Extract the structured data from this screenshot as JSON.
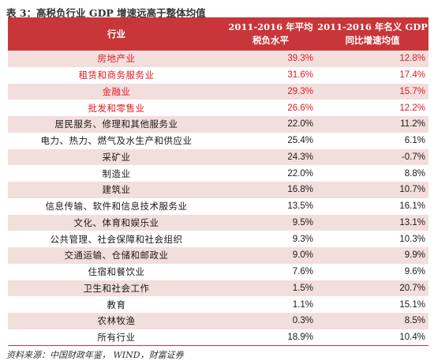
{
  "title": "表 3：高税负行业 GDP 增速远高于整体均值",
  "headers": {
    "industry": "行业",
    "col2_line1": "2011-2016 年平均",
    "col2_line2": "税负水平",
    "col3_line1": "2011-2016 年名义 GDP",
    "col3_line2": "同比增速均值"
  },
  "highlight_color": "#e0191f",
  "header_color": "#c8363a",
  "rows": [
    {
      "industry": "房地产业",
      "tax": "39.3%",
      "gdp": "12.8%",
      "highlight": true
    },
    {
      "industry": "租赁和商务服务业",
      "tax": "31.6%",
      "gdp": "17.4%",
      "highlight": true
    },
    {
      "industry": "金融业",
      "tax": "29.3%",
      "gdp": "15.7%",
      "highlight": true
    },
    {
      "industry": "批发和零售业",
      "tax": "26.6%",
      "gdp": "12.2%",
      "highlight": true
    },
    {
      "industry": "居民服务、修理和其他服务业",
      "tax": "22.0%",
      "gdp": "11.2%",
      "highlight": false
    },
    {
      "industry": "电力、热力、燃气及水生产和供应业",
      "tax": "25.4%",
      "gdp": "6.1%",
      "highlight": false
    },
    {
      "industry": "采矿业",
      "tax": "24.3%",
      "gdp": "-0.7%",
      "highlight": false
    },
    {
      "industry": "制造业",
      "tax": "22.0%",
      "gdp": "8.8%",
      "highlight": false
    },
    {
      "industry": "建筑业",
      "tax": "16.8%",
      "gdp": "10.7%",
      "highlight": false
    },
    {
      "industry": "信息传输、软件和信息技术服务业",
      "tax": "13.5%",
      "gdp": "16.1%",
      "highlight": false
    },
    {
      "industry": "文化、体育和娱乐业",
      "tax": "9.5%",
      "gdp": "13.1%",
      "highlight": false
    },
    {
      "industry": "公共管理、社会保障和社会组织",
      "tax": "9.3%",
      "gdp": "10.3%",
      "highlight": false
    },
    {
      "industry": "交通运输、仓储和邮政业",
      "tax": "9.0%",
      "gdp": "9.9%",
      "highlight": false
    },
    {
      "industry": "住宿和餐饮业",
      "tax": "7.6%",
      "gdp": "9.6%",
      "highlight": false
    },
    {
      "industry": "卫生和社会工作",
      "tax": "1.5%",
      "gdp": "20.7%",
      "highlight": false
    },
    {
      "industry": "教育",
      "tax": "1.1%",
      "gdp": "15.1%",
      "highlight": false
    },
    {
      "industry": "农林牧渔",
      "tax": "0.3%",
      "gdp": "8.5%",
      "highlight": false
    },
    {
      "industry": "所有行业",
      "tax": "18.9%",
      "gdp": "10.4%",
      "highlight": false
    }
  ],
  "source": "资料来源：中国财政年鉴， WIND，财富证券"
}
